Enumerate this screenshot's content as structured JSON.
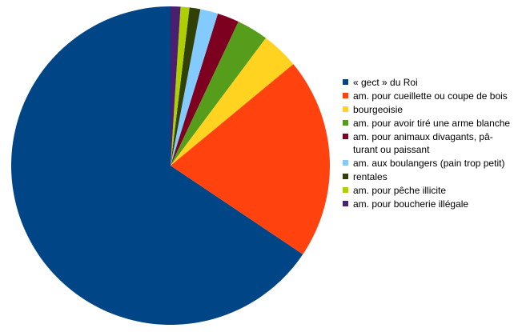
{
  "chart_data": {
    "type": "pie",
    "categories": [
      "« gect » du Roi",
      "am. pour cueillette ou coupe de bois",
      "bourgeoisie",
      "am. pour avoir tiré une arme blanche",
      "am. pour animaux divagants, pâ­turant ou paissant",
      "am. aux boulangers (pain trop pe­tit)",
      "rentales",
      "am. pour pêche illicite",
      "am. pour boucherie illégale"
    ],
    "values": [
      65.6,
      20.4,
      3.8,
      3.2,
      2.2,
      1.8,
      1.1,
      0.9,
      1.0
    ],
    "colors": [
      "#004586",
      "#ff420e",
      "#ffd320",
      "#579d1c",
      "#7e0021",
      "#83caff",
      "#314004",
      "#aecf00",
      "#4b1f6f"
    ],
    "legend": "right"
  }
}
